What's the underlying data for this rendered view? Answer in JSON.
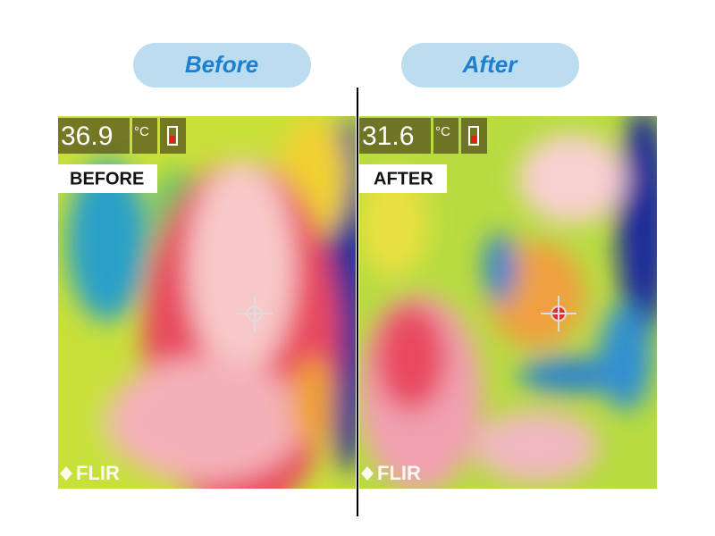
{
  "panels": [
    {
      "heading": "Before",
      "temperature": "36.9",
      "unit": "°C",
      "label": "BEFORE",
      "brand": "FLIR"
    },
    {
      "heading": "After",
      "temperature": "31.6",
      "unit": "°C",
      "label": "AFTER",
      "brand": "FLIR"
    }
  ]
}
